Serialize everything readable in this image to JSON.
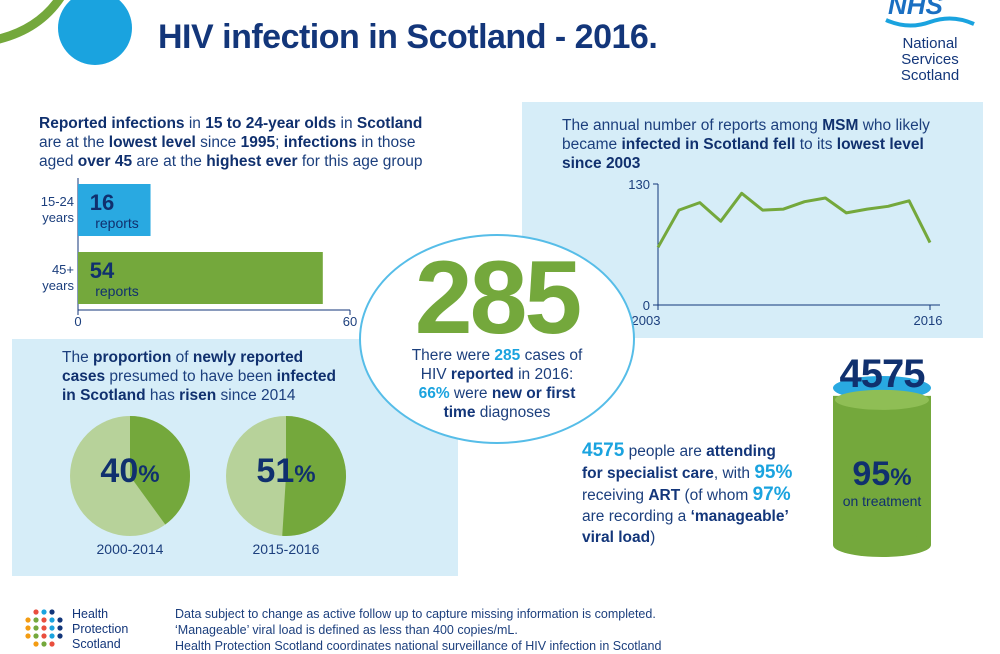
{
  "title": "HIV infection in Scotland - 2016.",
  "nhs": {
    "logo": "NHS",
    "line1": "National",
    "line2": "Services",
    "line3": "Scotland"
  },
  "age_panel": {
    "p1": "Reported infections",
    "p2": " in ",
    "p3": "15 to 24-year olds",
    "p4": " in ",
    "p5": "Scotland",
    "p6": "are at the ",
    "p7": "lowest level",
    "p8": " since ",
    "p9": "1995",
    "p10": "; ",
    "p11": "infections",
    "p12": " in those",
    "p13": "aged ",
    "p14": "over 45",
    "p15": " are at the ",
    "p16": "highest ever",
    "p17": " for this age group"
  },
  "msm_panel": {
    "p1": "The annual number of reports among ",
    "p2": "MSM",
    "p3": " who likely",
    "p4": "became ",
    "p5": "infected in Scotland fell",
    "p6": " to its ",
    "p7": "lowest level",
    "p8": "since 2003"
  },
  "center": {
    "big": "285",
    "l1a": "There were ",
    "l1b": "285",
    "l1c": " cases of",
    "l2a": "HIV ",
    "l2b": "reported",
    "l2c": " in 2016:",
    "l3a": "66%",
    "l3b": " were ",
    "l3c": "new or first",
    "l4a": "time",
    "l4b": " diagnoses"
  },
  "proportion_panel": {
    "p1": "The ",
    "p2": "proportion",
    "p3": " of ",
    "p4": "newly reported",
    "p5": "cases",
    "p6": " presumed to have been ",
    "p7": "infected",
    "p8": "in Scotland",
    "p9": " has ",
    "p10": "risen",
    "p11": " since 2014"
  },
  "care": {
    "big": "4575",
    "pct_num": "95",
    "pct_sym": "%",
    "pct_caption": "on treatment",
    "t1a": "4575",
    "t1b": " people are ",
    "t1c": "attending",
    "t2a": "for specialist care",
    "t2b": ", with ",
    "t2c": "95%",
    "t3a": "receiving ",
    "t3b": "ART",
    "t3c": " (of whom ",
    "t3d": "97%",
    "t4a": "are recording a ",
    "t4b": "‘manageable’",
    "t5a": "viral load",
    "t5b": ")",
    "treatment_fraction": 0.95
  },
  "footer": {
    "hps1": "Health",
    "hps2": "Protection",
    "hps3": "Scotland",
    "n1": "Data subject to change as active follow up to capture missing information is completed.",
    "n2": "‘Manageable’ viral load is defined as less than 400 copies/mL.",
    "n3": "Health Protection Scotland coordinates national surveillance of HIV infection in Scotland"
  },
  "colors": {
    "navy": "#13367a",
    "light_blue": "#1aa3df",
    "green": "#74a83c",
    "light_green": "#b7d29a",
    "panel": "#d6edf8"
  },
  "chart_data": [
    {
      "type": "bar",
      "orientation": "horizontal",
      "categories": [
        "15-24\nyears",
        "45+\nyears"
      ],
      "category_lines": [
        [
          "15-24",
          "years"
        ],
        [
          "45+",
          "years"
        ]
      ],
      "values": [
        16,
        54
      ],
      "value_unit": "reports",
      "xlim": [
        0,
        60
      ],
      "x_ticks": [
        "0",
        "60"
      ],
      "bar_colors": [
        "#29a9e1",
        "#74a83c"
      ]
    },
    {
      "type": "line",
      "x": [
        2003,
        2004,
        2005,
        2006,
        2007,
        2008,
        2009,
        2010,
        2011,
        2012,
        2013,
        2014,
        2015,
        2016
      ],
      "values": [
        62,
        102,
        110,
        90,
        120,
        102,
        103,
        111,
        115,
        99,
        103,
        106,
        112,
        67
      ],
      "ylim": [
        0,
        130
      ],
      "y_ticks": [
        "130",
        "0"
      ],
      "x_ticks": [
        "2003",
        "2016"
      ]
    },
    {
      "type": "pie",
      "labels": [
        "2000-2014",
        "2015-2016"
      ],
      "values": [
        40,
        51
      ],
      "value_display": [
        [
          "40",
          "%"
        ],
        [
          "51",
          "%"
        ]
      ]
    }
  ]
}
